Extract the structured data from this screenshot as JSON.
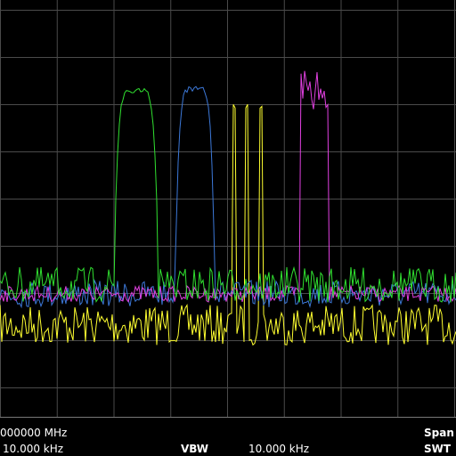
{
  "footer": {
    "row1": {
      "center_freq": "000000 MHz",
      "span_label": "Span"
    },
    "row2": {
      "rbw_value": "10.000 kHz",
      "vbw_label": "VBW",
      "vbw_value": "10.000 kHz",
      "swt_label": "SWT"
    }
  }
}
